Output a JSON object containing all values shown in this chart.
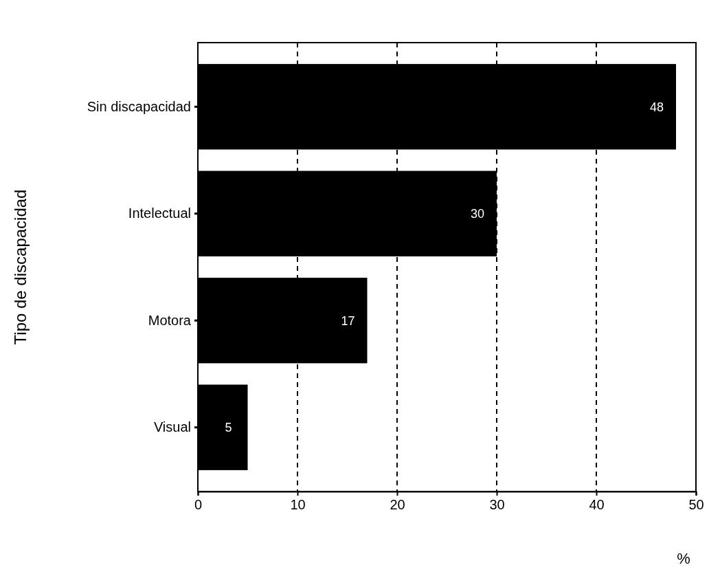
{
  "chart_data": {
    "type": "bar",
    "orientation": "horizontal",
    "categories": [
      "Sin discapacidad",
      "Intelectual",
      "Motora",
      "Visual"
    ],
    "values": [
      48,
      30,
      17,
      5
    ],
    "color": "#000000",
    "xlim": [
      0,
      50
    ],
    "xticks": [
      0,
      10,
      20,
      30,
      40,
      50
    ],
    "xlabel": "%",
    "ylabel": "Tipo de discapacidad",
    "grid": "x",
    "data_labels": true
  }
}
